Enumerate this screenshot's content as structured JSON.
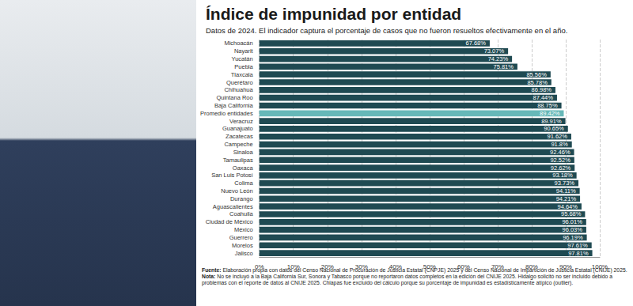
{
  "chart_data": {
    "type": "bar",
    "orientation": "horizontal",
    "title": "Índice de impunidad por entidad",
    "subtitle": "Datos de 2024. El indicador captura el porcentaje de casos que no fueron resueltos efectivamente en el año.",
    "categories": [
      "Michoacán",
      "Nayarit",
      "Yucatán",
      "Puebla",
      "Tlaxcala",
      "Querétaro",
      "Chihuahua",
      "Quintana Roo",
      "Baja California",
      "Promedio entidades",
      "Veracruz",
      "Guanajuato",
      "Zacatecas",
      "Campeche",
      "Sinaloa",
      "Tamaulipas",
      "Oaxaca",
      "San Luis Potosí",
      "Colima",
      "Nuevo León",
      "Durango",
      "Aguascalientes",
      "Coahuila",
      "Ciudad de México",
      "México",
      "Guerrero",
      "Morelos",
      "Jalisco"
    ],
    "values": [
      67.68,
      73.07,
      74.23,
      75.81,
      85.56,
      85.78,
      86.98,
      87.44,
      88.75,
      89.42,
      89.91,
      90.65,
      91.62,
      91.8,
      92.46,
      92.52,
      92.62,
      93.18,
      93.73,
      94.11,
      94.21,
      94.64,
      95.68,
      96.01,
      96.03,
      96.19,
      97.61,
      97.81
    ],
    "value_labels": [
      "67.68%",
      "73.07%",
      "74.23%",
      "75.81%",
      "85.56%",
      "85.78%",
      "86.98%",
      "87.44%",
      "88.75%",
      "89.42%",
      "89.91%",
      "90.65%",
      "91.62%",
      "91.8%",
      "92.46%",
      "92.52%",
      "92.62%",
      "93.18%",
      "93.73%",
      "94.11%",
      "94.21%",
      "94.64%",
      "95.68%",
      "96.01%",
      "96.03%",
      "96.19%",
      "97.61%",
      "97.81%"
    ],
    "colors": [
      "#1f4a52",
      "#1f4a52",
      "#1f4a52",
      "#1f4a52",
      "#1f4a52",
      "#1f4a52",
      "#1f4a52",
      "#1f4a52",
      "#1f4a52",
      "#66b8b8",
      "#1f4a52",
      "#1f4a52",
      "#1f4a52",
      "#1f4a52",
      "#1f4a52",
      "#1f4a52",
      "#1f4a52",
      "#1f4a52",
      "#1f4a52",
      "#1f4a52",
      "#1f4a52",
      "#1f4a52",
      "#1f4a52",
      "#1f4a52",
      "#1f4a52",
      "#1f4a52",
      "#1f4a52",
      "#1f4a52"
    ],
    "xlim": [
      0,
      100
    ],
    "xticks": [
      {
        "value": 0,
        "label": "0%"
      },
      {
        "value": 10,
        "label": "10%"
      },
      {
        "value": 20,
        "label": "20%"
      },
      {
        "value": 30,
        "label": "30%"
      },
      {
        "value": 40,
        "label": "40%"
      },
      {
        "value": 50,
        "label": "50%"
      },
      {
        "value": 60,
        "label": "60%"
      },
      {
        "value": 70,
        "label": "70%"
      },
      {
        "value": 80,
        "label": "80%"
      },
      {
        "value": 90,
        "label": "90%"
      },
      {
        "value": 100,
        "label": "100%"
      }
    ],
    "grid": true,
    "data_labels": true,
    "annotations": [
      {
        "label": "Fuente:",
        "text": "Elaboración propia con datos del Censo Nacional de Procuración de Justicia Estatal (CNPJE) 2025 y del Censo Nacional de Impartición de Justicia Estatal (CNIJE) 2025."
      },
      {
        "label": "Nota:",
        "text": "No se incluyó a la Baja California Sur, Sonora y Tabasco porque no reportaron datos completos en la edición del CNIJE 2025. Hidalgo solicitó no ser incluido debido a problemas con el reporte de datos al CNIJE 2025. Chiapas fue excluido del cálculo porque su porcentaje de impunidad es estadísticamente atípico (outlier)."
      }
    ]
  }
}
